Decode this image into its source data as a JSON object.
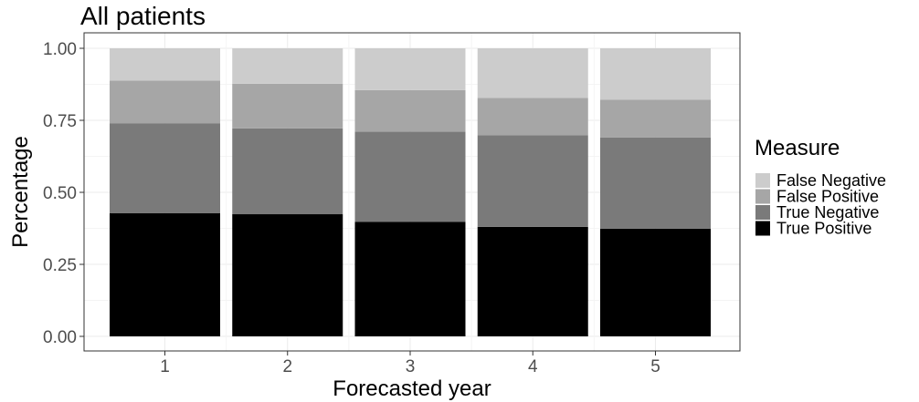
{
  "chart_data": {
    "type": "bar",
    "stacked": true,
    "title": "All patients",
    "xlabel": "Forecasted year",
    "ylabel": "Percentage",
    "categories": [
      "1",
      "2",
      "3",
      "4",
      "5"
    ],
    "ylim": [
      0,
      1
    ],
    "yticks": [
      "0.00",
      "0.25",
      "0.50",
      "0.75",
      "1.00"
    ],
    "grid": true,
    "legend_title": "Measure",
    "legend_position": "right",
    "series": [
      {
        "name": "True Positive",
        "color": "#000000",
        "values": [
          0.428,
          0.424,
          0.398,
          0.38,
          0.374
        ]
      },
      {
        "name": "True Negative",
        "color": "#7a7a7a",
        "values": [
          0.312,
          0.298,
          0.313,
          0.318,
          0.316
        ]
      },
      {
        "name": "False Positive",
        "color": "#a6a6a6",
        "values": [
          0.148,
          0.155,
          0.144,
          0.13,
          0.132
        ]
      },
      {
        "name": "False Negative",
        "color": "#cccccc",
        "values": [
          0.112,
          0.123,
          0.145,
          0.172,
          0.178
        ]
      }
    ],
    "legend_order": [
      "False Negative",
      "False Positive",
      "True Negative",
      "True Positive"
    ]
  }
}
